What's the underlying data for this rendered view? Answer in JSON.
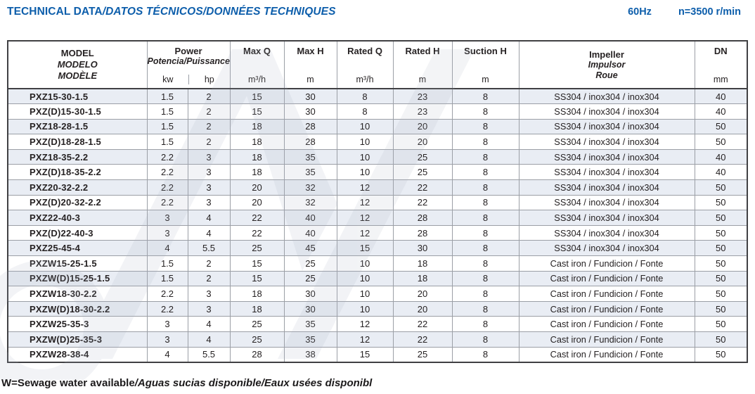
{
  "header": {
    "title_main": "TECHNICAL DATA",
    "title_secondary": "/DATOS TÉCNICOS/DONNÉES TECHNIQUES",
    "frequency": "60Hz",
    "speed": "n=3500 r/min"
  },
  "table": {
    "columns": {
      "model": {
        "l1": "MODEL",
        "l2": "MODELO",
        "l3": "MODÈLE"
      },
      "power": {
        "label": "Power",
        "sublabel": "Potencia/Puissance",
        "unit_kw": "kw",
        "unit_hp": "hp"
      },
      "max_q": {
        "label": "Max Q",
        "unit": "m³/h"
      },
      "max_h": {
        "label": "Max H",
        "unit": "m"
      },
      "rated_q": {
        "label": "Rated Q",
        "unit": "m³/h"
      },
      "rated_h": {
        "label": "Rated H",
        "unit": "m"
      },
      "suction_h": {
        "label": "Suction H",
        "unit": "m"
      },
      "impeller": {
        "l1": "Impeller",
        "l2": "Impulsor",
        "l3": "Roue"
      },
      "dn": {
        "label": "DN",
        "unit": "mm"
      }
    },
    "column_keys": [
      "model",
      "kw",
      "hp",
      "max_q",
      "max_h",
      "rated_q",
      "rated_h",
      "suction_h",
      "impeller",
      "dn"
    ],
    "rows": [
      [
        "PXZ15-30-1.5",
        "1.5",
        "2",
        "15",
        "30",
        "8",
        "23",
        "8",
        "SS304 / inox304 / inox304",
        "40"
      ],
      [
        "PXZ(D)15-30-1.5",
        "1.5",
        "2",
        "15",
        "30",
        "8",
        "23",
        "8",
        "SS304 / inox304 / inox304",
        "40"
      ],
      [
        "PXZ18-28-1.5",
        "1.5",
        "2",
        "18",
        "28",
        "10",
        "20",
        "8",
        "SS304 / inox304 / inox304",
        "50"
      ],
      [
        "PXZ(D)18-28-1.5",
        "1.5",
        "2",
        "18",
        "28",
        "10",
        "20",
        "8",
        "SS304 / inox304 / inox304",
        "50"
      ],
      [
        "PXZ18-35-2.2",
        "2.2",
        "3",
        "18",
        "35",
        "10",
        "25",
        "8",
        "SS304 / inox304 / inox304",
        "40"
      ],
      [
        "PXZ(D)18-35-2.2",
        "2.2",
        "3",
        "18",
        "35",
        "10",
        "25",
        "8",
        "SS304 / inox304 / inox304",
        "40"
      ],
      [
        "PXZ20-32-2.2",
        "2.2",
        "3",
        "20",
        "32",
        "12",
        "22",
        "8",
        "SS304 / inox304 / inox304",
        "50"
      ],
      [
        "PXZ(D)20-32-2.2",
        "2.2",
        "3",
        "20",
        "32",
        "12",
        "22",
        "8",
        "SS304 / inox304 / inox304",
        "50"
      ],
      [
        "PXZ22-40-3",
        "3",
        "4",
        "22",
        "40",
        "12",
        "28",
        "8",
        "SS304 / inox304 / inox304",
        "50"
      ],
      [
        "PXZ(D)22-40-3",
        "3",
        "4",
        "22",
        "40",
        "12",
        "28",
        "8",
        "SS304 / inox304 / inox304",
        "50"
      ],
      [
        "PXZ25-45-4",
        "4",
        "5.5",
        "25",
        "45",
        "15",
        "30",
        "8",
        "SS304 / inox304 / inox304",
        "50"
      ],
      [
        "PXZW15-25-1.5",
        "1.5",
        "2",
        "15",
        "25",
        "10",
        "18",
        "8",
        "Cast iron / Fundicion / Fonte",
        "50"
      ],
      [
        "PXZW(D)15-25-1.5",
        "1.5",
        "2",
        "15",
        "25",
        "10",
        "18",
        "8",
        "Cast iron / Fundicion / Fonte",
        "50"
      ],
      [
        "PXZW18-30-2.2",
        "2.2",
        "3",
        "18",
        "30",
        "10",
        "20",
        "8",
        "Cast iron / Fundicion / Fonte",
        "50"
      ],
      [
        "PXZW(D)18-30-2.2",
        "2.2",
        "3",
        "18",
        "30",
        "10",
        "20",
        "8",
        "Cast iron / Fundicion / Fonte",
        "50"
      ],
      [
        "PXZW25-35-3",
        "3",
        "4",
        "25",
        "35",
        "12",
        "22",
        "8",
        "Cast iron / Fundicion / Fonte",
        "50"
      ],
      [
        "PXZW(D)25-35-3",
        "3",
        "4",
        "25",
        "35",
        "12",
        "22",
        "8",
        "Cast iron / Fundicion / Fonte",
        "50"
      ],
      [
        "PXZW28-38-4",
        "4",
        "5.5",
        "28",
        "38",
        "15",
        "25",
        "8",
        "Cast iron / Fundicion / Fonte",
        "50"
      ]
    ]
  },
  "footer": {
    "main": "W=Sewage water available",
    "secondary": "/Aguas sucias disponible/Eaux usées disponibl"
  },
  "colors": {
    "accent_blue": "#0d5eab",
    "row_shade": "#e9edf4",
    "grid_line": "#9b9fa6",
    "frame": "#404043"
  }
}
